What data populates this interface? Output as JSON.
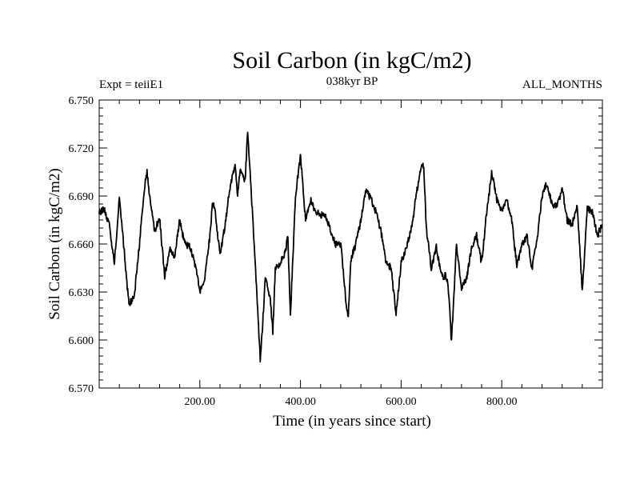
{
  "chart_data": {
    "type": "line",
    "title": "Soil Carbon (in kgC/m2)",
    "subtitle_left": "Expt = teiiE1",
    "subtitle_center": "038kyr BP",
    "subtitle_right": "ALL_MONTHS",
    "xlabel": "Time (in years since start)",
    "ylabel": "Soil Carbon (in kgC/m2)",
    "xlim": [
      0,
      1000
    ],
    "ylim": [
      6.57,
      6.75
    ],
    "x_ticks": [
      200,
      400,
      600,
      800
    ],
    "x_tick_labels": [
      "200.00",
      "400.00",
      "600.00",
      "800.00"
    ],
    "y_ticks": [
      6.57,
      6.6,
      6.63,
      6.66,
      6.69,
      6.72,
      6.75
    ],
    "y_tick_labels": [
      "6.570",
      "6.600",
      "6.630",
      "6.660",
      "6.690",
      "6.720",
      "6.750"
    ],
    "grid": false,
    "line_color": "#000000",
    "series": [
      {
        "x": [
          0,
          10,
          20,
          30,
          40,
          50,
          55,
          60,
          70,
          80,
          85,
          90,
          95,
          100,
          110,
          120,
          130,
          140,
          150,
          160,
          170,
          180,
          190,
          200,
          210,
          220,
          225,
          230,
          240,
          250,
          260,
          270,
          275,
          280,
          290,
          295,
          300,
          310,
          320,
          325,
          330,
          335,
          340,
          345,
          350,
          360,
          370,
          375,
          380,
          390,
          400,
          410,
          420,
          430,
          440,
          450,
          460,
          470,
          480,
          490,
          495,
          500,
          510,
          520,
          530,
          540,
          550,
          560,
          570,
          580,
          590,
          600,
          610,
          620,
          630,
          640,
          645,
          650,
          660,
          670,
          680,
          690,
          695,
          700,
          710,
          720,
          730,
          740,
          750,
          760,
          770,
          780,
          790,
          800,
          810,
          820,
          830,
          840,
          850,
          860,
          870,
          880,
          890,
          900,
          910,
          920,
          930,
          940,
          950,
          960,
          970,
          980,
          990,
          1000
        ],
        "y": [
          6.68,
          6.682,
          6.672,
          6.648,
          6.688,
          6.655,
          6.635,
          6.622,
          6.628,
          6.66,
          6.678,
          6.695,
          6.705,
          6.69,
          6.668,
          6.676,
          6.64,
          6.657,
          6.652,
          6.675,
          6.66,
          6.658,
          6.648,
          6.63,
          6.64,
          6.665,
          6.685,
          6.683,
          6.652,
          6.672,
          6.695,
          6.71,
          6.69,
          6.705,
          6.7,
          6.73,
          6.705,
          6.648,
          6.588,
          6.61,
          6.64,
          6.632,
          6.625,
          6.605,
          6.645,
          6.648,
          6.655,
          6.665,
          6.615,
          6.69,
          6.715,
          6.675,
          6.688,
          6.68,
          6.678,
          6.678,
          6.668,
          6.66,
          6.66,
          6.625,
          6.615,
          6.65,
          6.66,
          6.675,
          6.693,
          6.688,
          6.68,
          6.668,
          6.648,
          6.645,
          6.616,
          6.648,
          6.658,
          6.668,
          6.69,
          6.71,
          6.708,
          6.67,
          6.645,
          6.658,
          6.64,
          6.64,
          6.628,
          6.598,
          6.66,
          6.632,
          6.638,
          6.658,
          6.665,
          6.648,
          6.68,
          6.705,
          6.688,
          6.68,
          6.688,
          6.675,
          6.646,
          6.66,
          6.665,
          6.645,
          6.662,
          6.69,
          6.698,
          6.685,
          6.683,
          6.695,
          6.675,
          6.672,
          6.685,
          6.63,
          6.682,
          6.68,
          6.665,
          6.672
        ]
      }
    ]
  }
}
